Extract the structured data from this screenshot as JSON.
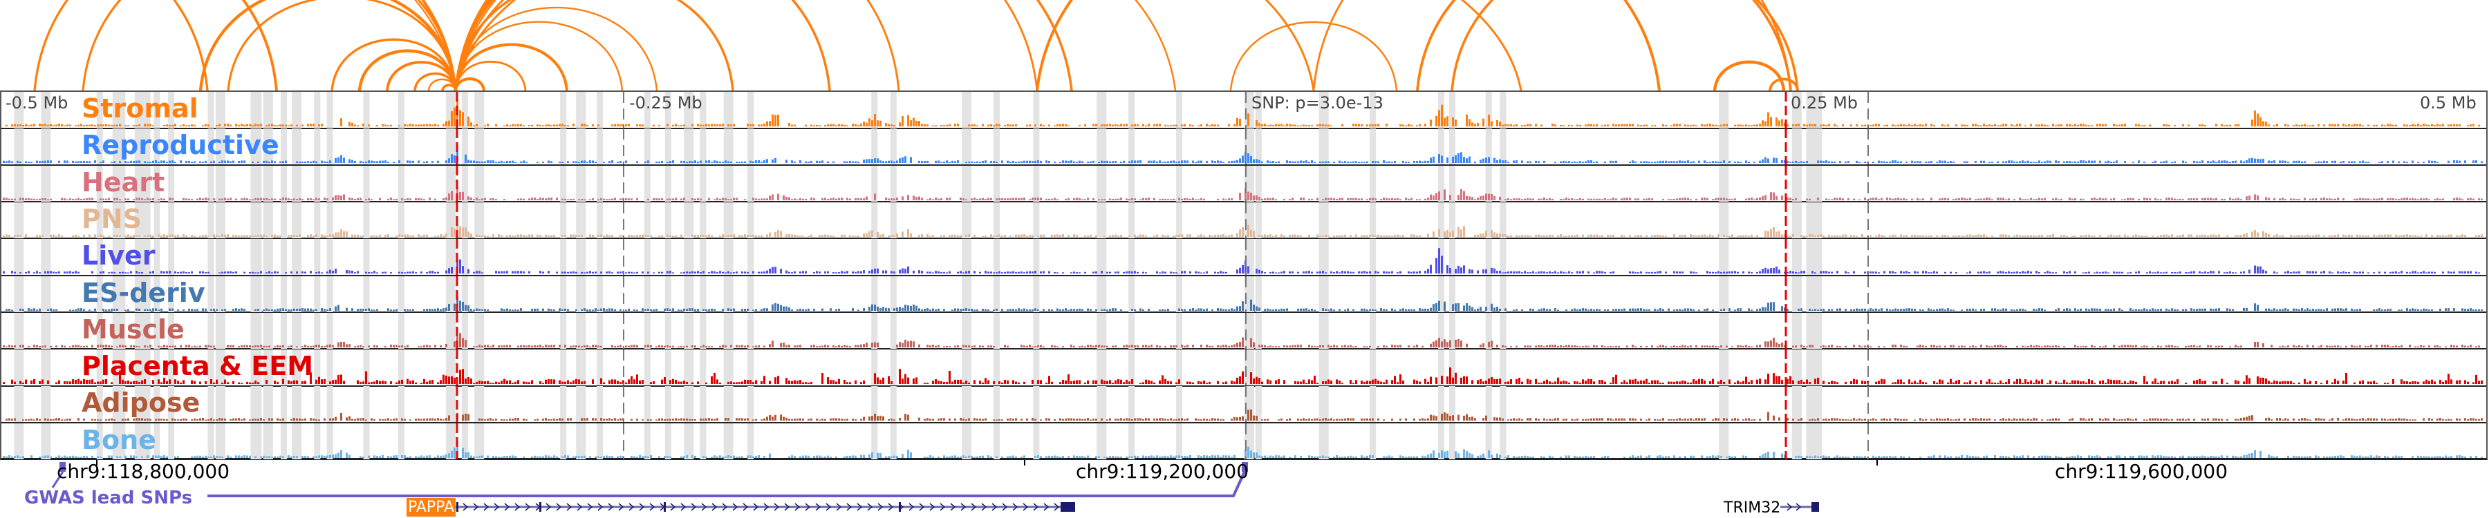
{
  "scale_labels": {
    "left_far": "-0.5 Mb",
    "left_near": "-0.25 Mb",
    "snp": "SNP: p=3.0e-13",
    "right_near": "0.25 Mb",
    "right_far": "0.5 Mb"
  },
  "tracks": [
    {
      "label": "Stromal",
      "color": "#ff7f0e"
    },
    {
      "label": "Reproductive",
      "color": "#3a86ff"
    },
    {
      "label": "Heart",
      "color": "#d8707e"
    },
    {
      "label": "PNS",
      "color": "#e2b794"
    },
    {
      "label": "Liver",
      "color": "#5050e6"
    },
    {
      "label": "ES-deriv",
      "color": "#4479b0"
    },
    {
      "label": "Muscle",
      "color": "#c4635c"
    },
    {
      "label": "Placenta & EEM",
      "color": "#e00000"
    },
    {
      "label": "Adipose",
      "color": "#b05a38"
    },
    {
      "label": "Bone",
      "color": "#6cb4e8"
    }
  ],
  "axis": {
    "ticks": [
      "chr9:118,800,000",
      "chr9:119,200,000",
      "chr9:119,600,000"
    ]
  },
  "gwas": {
    "label": "GWAS lead SNPs",
    "color": "#6a5acd"
  },
  "genes": [
    {
      "name": "PAPPA",
      "color": "#ff7f0e"
    },
    {
      "name": "TRIM32"
    }
  ],
  "arc_color": "#ff7f0e",
  "chart_data": {
    "type": "genome-browser",
    "tracks": [
      "Stromal",
      "Reproductive",
      "Heart",
      "PNS",
      "Liver",
      "ES-deriv",
      "Muscle",
      "Placenta & EEM",
      "Adipose",
      "Bone"
    ],
    "region_offsets_mb": [
      -0.5,
      -0.25,
      0,
      0.25,
      0.5
    ],
    "lead_snp_pvalue": "3.0e-13",
    "x_ticks": [
      "chr9:118,800,000",
      "chr9:119,200,000",
      "chr9:119,600,000"
    ]
  }
}
